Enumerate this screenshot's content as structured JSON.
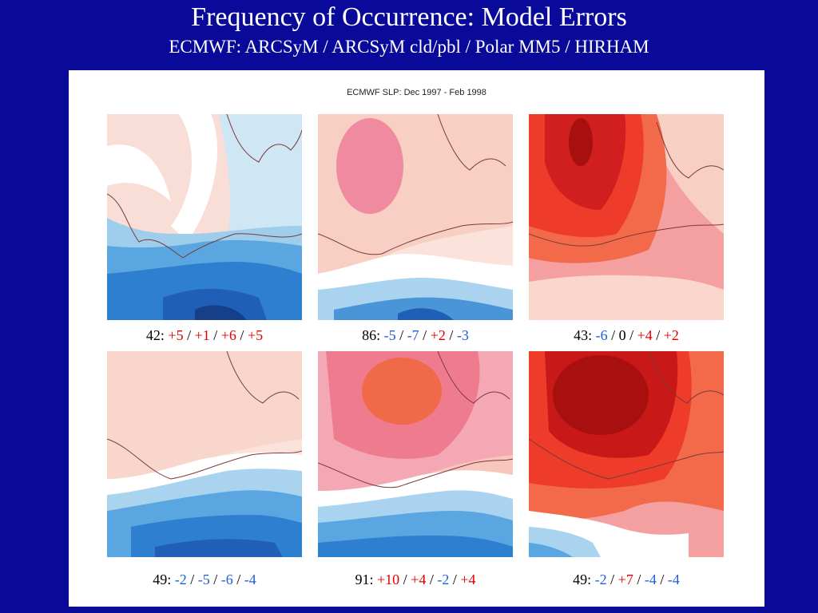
{
  "slide": {
    "title": "Frequency of Occurrence: Model Errors",
    "subtitle": "ECMWF: ARCSyM / ARCSyM cld/pbl / Polar MM5 / HIRHAM"
  },
  "figure": {
    "title": "ECMWF SLP: Dec 1997 - Feb 1998",
    "maps": [
      {
        "caption_prefix": "42:",
        "values": [
          "+5",
          "+1",
          "+6",
          "+5"
        ],
        "signs": [
          "pos",
          "pos",
          "pos",
          "pos"
        ]
      },
      {
        "caption_prefix": "86:",
        "values": [
          "-5",
          "-7",
          "+2",
          "-3"
        ],
        "signs": [
          "neg",
          "neg",
          "pos",
          "neg"
        ]
      },
      {
        "caption_prefix": "43:",
        "values": [
          "-6",
          "0",
          "+4",
          "+2"
        ],
        "signs": [
          "neg",
          "zero",
          "pos",
          "pos"
        ]
      },
      {
        "caption_prefix": "49:",
        "values": [
          "-2",
          "-5",
          "-6",
          "-4"
        ],
        "signs": [
          "neg",
          "neg",
          "neg",
          "neg"
        ]
      },
      {
        "caption_prefix": "91:",
        "values": [
          "+10",
          "+4",
          "-2",
          "+4"
        ],
        "signs": [
          "pos",
          "pos",
          "neg",
          "pos"
        ]
      },
      {
        "caption_prefix": "49:",
        "values": [
          "-2",
          "+7",
          "-4",
          "-4"
        ],
        "signs": [
          "neg",
          "pos",
          "neg",
          "neg"
        ]
      }
    ],
    "separator": " / "
  },
  "colors": {
    "background": "#0a0a9a",
    "positive_text": "#e00000",
    "negative_text": "#1f5fd8"
  }
}
